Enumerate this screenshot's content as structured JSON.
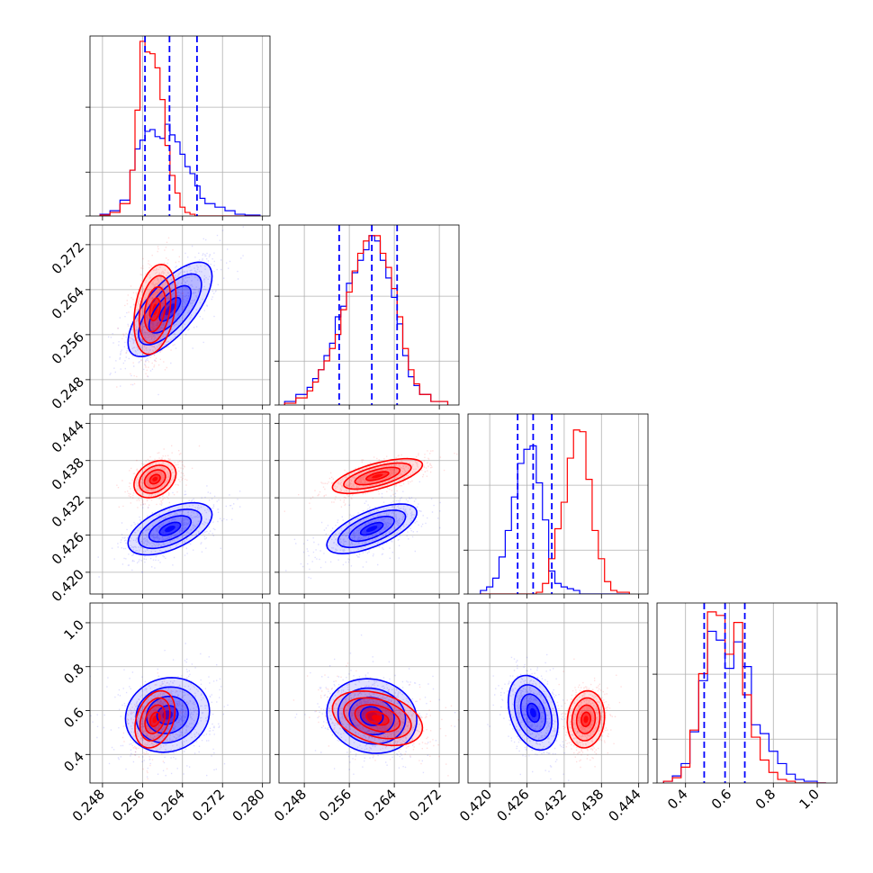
{
  "chart_data": {
    "type": "corner",
    "colors": {
      "blue": "#0000ff",
      "red": "#ff0000",
      "grid": "#b0b0b0"
    },
    "grid": true,
    "axes_ticks": {
      "p1": [
        0.248,
        0.256,
        0.264,
        0.272,
        0.28
      ],
      "p2": [
        0.248,
        0.256,
        0.264,
        0.272
      ],
      "p3": [
        0.42,
        0.426,
        0.432,
        0.438,
        0.444
      ],
      "p4": [
        0.4,
        0.6,
        0.8,
        1.0
      ]
    },
    "axes_tick_labels": {
      "p1": [
        "0.248",
        "0.256",
        "0.264",
        "0.272",
        "0.280"
      ],
      "p2": [
        "0.248",
        "0.256",
        "0.264",
        "0.272"
      ],
      "p3": [
        "0.420",
        "0.426",
        "0.432",
        "0.438",
        "0.444"
      ],
      "p4": [
        "0.4",
        "0.6",
        "0.8",
        "1.0"
      ]
    },
    "y_tick_labels": {
      "p2": [
        "0.248",
        "0.256",
        "0.264",
        "0.272"
      ],
      "p3": [
        "0.420",
        "0.426",
        "0.432",
        "0.438",
        "0.444"
      ],
      "p4": [
        "0.4",
        "0.6",
        "0.8",
        "1.0"
      ]
    },
    "axes_ranges": {
      "p1": [
        0.2455,
        0.2815
      ],
      "p2": [
        0.2435,
        0.2755
      ],
      "p3": [
        0.4165,
        0.4455
      ],
      "p4": [
        0.27,
        1.09
      ]
    },
    "quantiles": {
      "p1": [
        0.2565,
        0.2614,
        0.2669
      ],
      "p2": [
        0.2542,
        0.26,
        0.2645
      ],
      "p3": [
        0.4245,
        0.427,
        0.43
      ],
      "p4": [
        0.485,
        0.58,
        0.67
      ]
    },
    "marginals": {
      "p1": {
        "bin_edges": [
          0.2475,
          0.2495,
          0.2515,
          0.2535,
          0.2545,
          0.2555,
          0.2565,
          0.2575,
          0.2585,
          0.2595,
          0.2605,
          0.2615,
          0.2625,
          0.2635,
          0.2645,
          0.2655,
          0.2665,
          0.2675,
          0.2685,
          0.2705,
          0.2725,
          0.2745,
          0.2765,
          0.2795
        ],
        "blue": [
          0.01,
          0.03,
          0.09,
          0.26,
          0.38,
          0.43,
          0.48,
          0.49,
          0.45,
          0.44,
          0.52,
          0.46,
          0.42,
          0.35,
          0.28,
          0.24,
          0.17,
          0.1,
          0.07,
          0.05,
          0.03,
          0.01,
          0.005
        ],
        "red": [
          0.005,
          0.02,
          0.07,
          0.26,
          0.6,
          0.99,
          0.93,
          0.92,
          0.84,
          0.66,
          0.4,
          0.23,
          0.13,
          0.05,
          0.02,
          0.01,
          0.0,
          0.0,
          0.0,
          0.0,
          0.0,
          0.0,
          0.0
        ],
        "ymax": 1.0
      },
      "p2": {
        "bin_edges": [
          0.2445,
          0.2465,
          0.2485,
          0.2495,
          0.2505,
          0.2515,
          0.2525,
          0.2535,
          0.2545,
          0.2555,
          0.2565,
          0.2575,
          0.2585,
          0.2595,
          0.2605,
          0.2615,
          0.2625,
          0.2635,
          0.2645,
          0.2655,
          0.2665,
          0.2675,
          0.2685,
          0.2705,
          0.2735
        ],
        "blue": [
          0.02,
          0.06,
          0.1,
          0.15,
          0.2,
          0.28,
          0.35,
          0.5,
          0.56,
          0.69,
          0.75,
          0.82,
          0.88,
          0.96,
          0.93,
          0.82,
          0.72,
          0.61,
          0.46,
          0.28,
          0.16,
          0.11,
          0.06,
          0.02
        ],
        "red": [
          0.01,
          0.04,
          0.08,
          0.13,
          0.2,
          0.25,
          0.32,
          0.4,
          0.54,
          0.64,
          0.76,
          0.86,
          0.93,
          0.96,
          0.96,
          0.86,
          0.78,
          0.66,
          0.5,
          0.32,
          0.2,
          0.12,
          0.06,
          0.02
        ],
        "ymax": 1.0
      },
      "p3": {
        "bin_edges": [
          0.4185,
          0.4195,
          0.4205,
          0.4215,
          0.4225,
          0.4235,
          0.4245,
          0.4255,
          0.4265,
          0.4275,
          0.4285,
          0.4295,
          0.4305,
          0.4315,
          0.4325,
          0.4335,
          0.4345,
          0.4355,
          0.4365,
          0.4375,
          0.4385,
          0.4395,
          0.4405,
          0.4425
        ],
        "blue": [
          0.02,
          0.04,
          0.09,
          0.21,
          0.36,
          0.55,
          0.74,
          0.82,
          0.84,
          0.63,
          0.42,
          0.13,
          0.06,
          0.04,
          0.03,
          0.02,
          0.0,
          0.0,
          0.0,
          0.0,
          0.0,
          0.0,
          0.0
        ],
        "red": [
          0.0,
          0.0,
          0.0,
          0.0,
          0.0,
          0.0,
          0.0,
          0.0,
          0.0,
          0.01,
          0.06,
          0.2,
          0.37,
          0.52,
          0.77,
          0.93,
          0.92,
          0.65,
          0.36,
          0.2,
          0.07,
          0.02,
          0.01
        ],
        "ymax": 1.0
      },
      "p4": {
        "bin_edges": [
          0.3,
          0.34,
          0.38,
          0.42,
          0.46,
          0.5,
          0.54,
          0.58,
          0.62,
          0.66,
          0.7,
          0.74,
          0.78,
          0.82,
          0.86,
          0.9,
          0.94,
          1.0,
          1.04
        ],
        "blue": [
          0.01,
          0.04,
          0.11,
          0.29,
          0.58,
          0.86,
          0.81,
          0.65,
          0.8,
          0.66,
          0.33,
          0.28,
          0.18,
          0.11,
          0.05,
          0.02,
          0.01,
          0.0
        ],
        "red": [
          0.01,
          0.03,
          0.09,
          0.3,
          0.62,
          0.97,
          0.95,
          0.73,
          0.91,
          0.5,
          0.26,
          0.13,
          0.06,
          0.02,
          0.01,
          0.0,
          0.0,
          0.0
        ],
        "ymax": 1.0
      }
    },
    "joint": {
      "p1_p2": {
        "blue": {
          "mean": [
            0.2615,
            0.2605
          ],
          "sd": [
            0.0042,
            0.0042
          ],
          "rho": 0.7
        },
        "red": {
          "mean": [
            0.2585,
            0.2605
          ],
          "sd": [
            0.0021,
            0.004
          ],
          "rho": 0.3
        }
      },
      "p1_p3": {
        "blue": {
          "mean": [
            0.2615,
            0.427
          ],
          "sd": [
            0.0042,
            0.0021
          ],
          "rho": 0.55
        },
        "red": {
          "mean": [
            0.2585,
            0.435
          ],
          "sd": [
            0.0021,
            0.0015
          ],
          "rho": 0.3
        }
      },
      "p2_p3": {
        "blue": {
          "mean": [
            0.26,
            0.427
          ],
          "sd": [
            0.004,
            0.002
          ],
          "rho": 0.65
        },
        "red": {
          "mean": [
            0.261,
            0.4355
          ],
          "sd": [
            0.004,
            0.0014
          ],
          "rho": 0.65
        }
      },
      "p1_p4": {
        "blue": {
          "mean": [
            0.261,
            0.58
          ],
          "sd": [
            0.0042,
            0.085
          ],
          "rho": 0.1
        },
        "red": {
          "mean": [
            0.2585,
            0.56
          ],
          "sd": [
            0.002,
            0.065
          ],
          "rho": 0.3
        }
      },
      "p2_p4": {
        "blue": {
          "mean": [
            0.26,
            0.575
          ],
          "sd": [
            0.004,
            0.085
          ],
          "rho": -0.1
        },
        "red": {
          "mean": [
            0.261,
            0.565
          ],
          "sd": [
            0.004,
            0.062
          ],
          "rho": -0.35
        }
      },
      "p3_p4": {
        "blue": {
          "mean": [
            0.427,
            0.59
          ],
          "sd": [
            0.002,
            0.085
          ],
          "rho": -0.3
        },
        "red": {
          "mean": [
            0.4355,
            0.56
          ],
          "sd": [
            0.0015,
            0.065
          ],
          "rho": 0.1
        }
      }
    }
  }
}
